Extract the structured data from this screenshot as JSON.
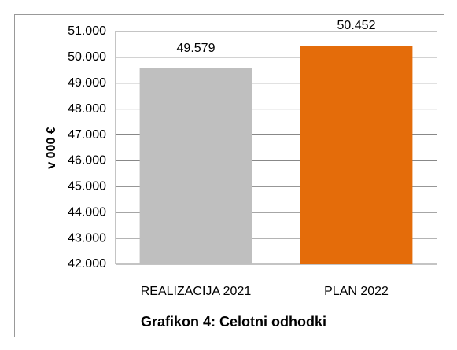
{
  "chart_data": {
    "type": "bar",
    "title": "Grafikon 4: Celotni odhodki",
    "y_label": "v 000 €",
    "categories": [
      "REALIZACIJA 2021",
      "PLAN 2022"
    ],
    "values": [
      49579,
      50452
    ],
    "value_labels": [
      "49.579",
      "50.452"
    ],
    "colors": [
      "#bfbfbf",
      "#e46c0a"
    ],
    "ylim": [
      42000,
      51000
    ],
    "yticks": [
      {
        "value": 42000,
        "label": "42.000"
      },
      {
        "value": 43000,
        "label": "43.000"
      },
      {
        "value": 44000,
        "label": "44.000"
      },
      {
        "value": 45000,
        "label": "45.000"
      },
      {
        "value": 46000,
        "label": "46.000"
      },
      {
        "value": 47000,
        "label": "47.000"
      },
      {
        "value": 48000,
        "label": "48.000"
      },
      {
        "value": 49000,
        "label": "49.000"
      },
      {
        "value": 50000,
        "label": "50.000"
      },
      {
        "value": 51000,
        "label": "51.000"
      }
    ],
    "grid": true
  }
}
